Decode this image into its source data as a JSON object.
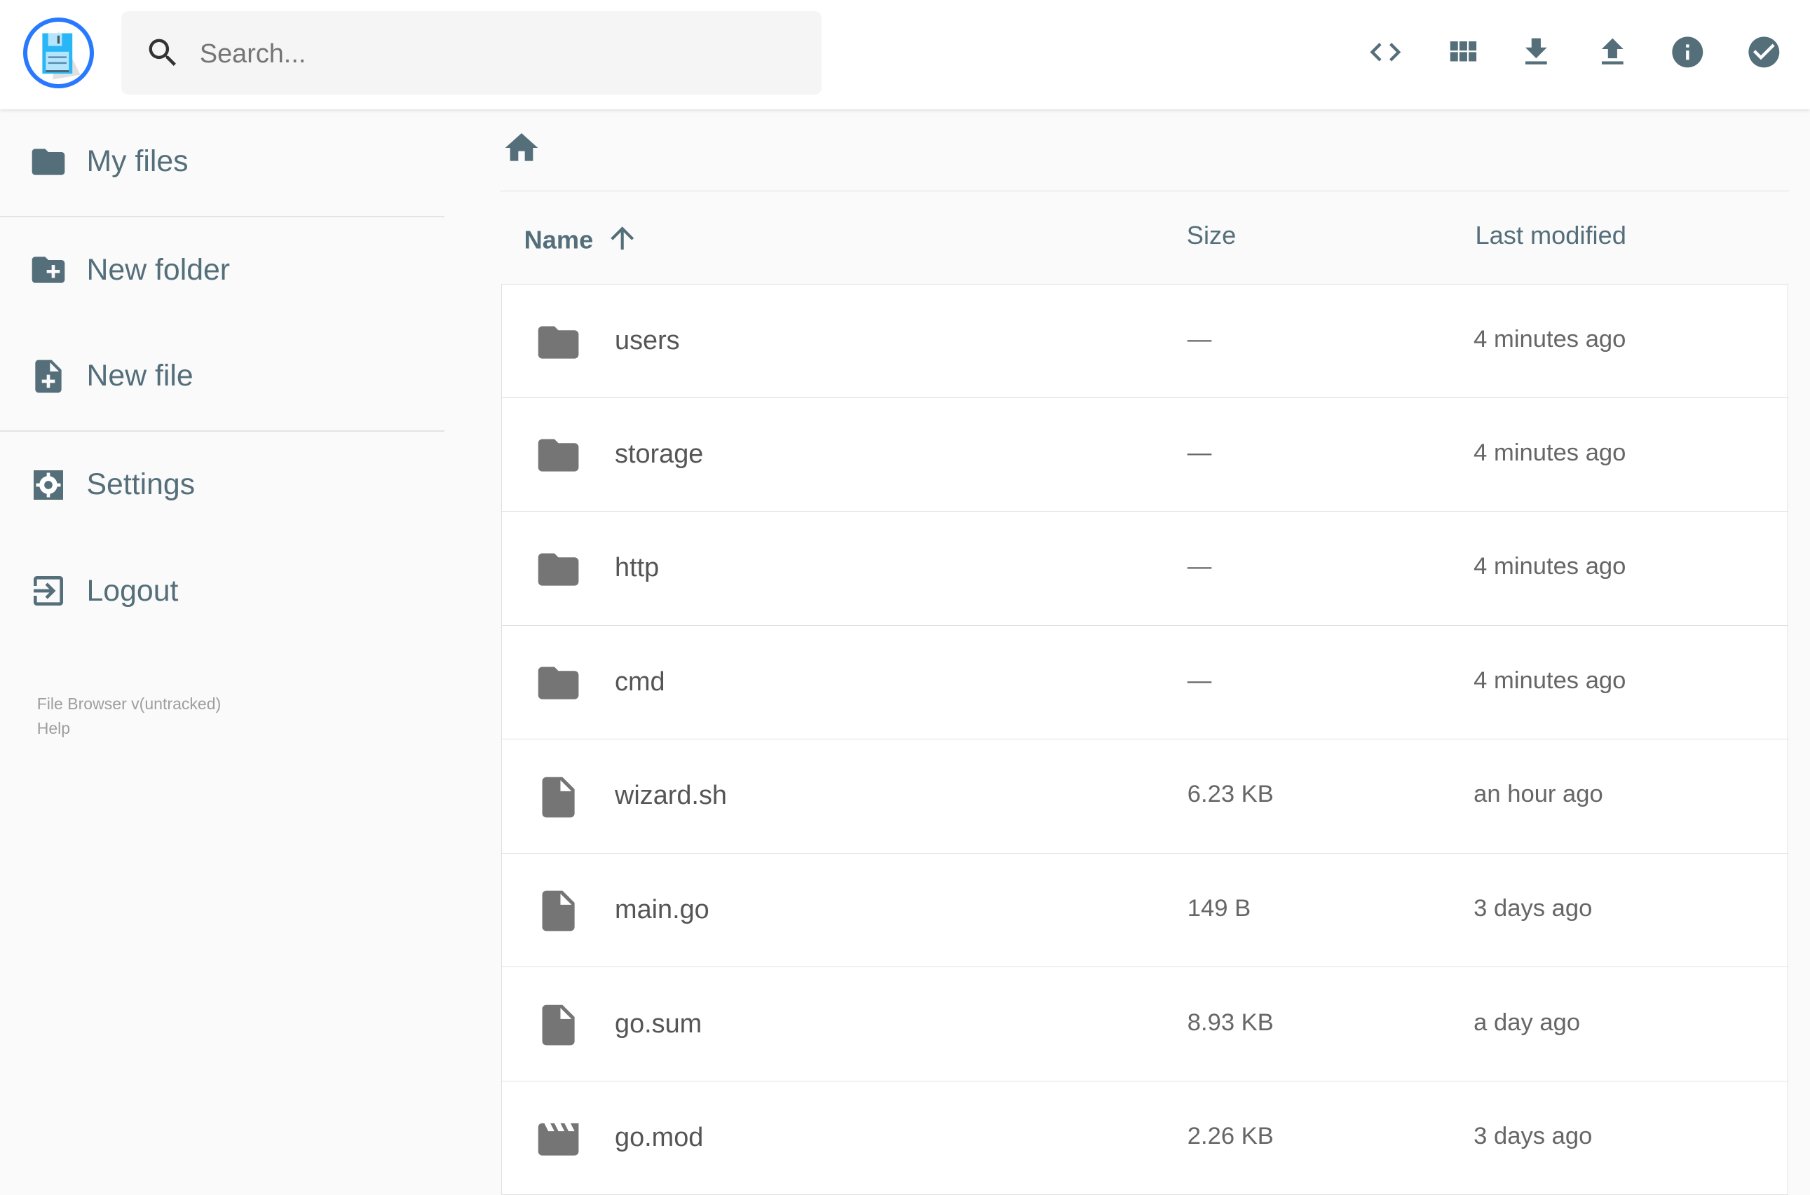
{
  "colors": {
    "accent": "#2979ff",
    "icon": "#546e7a",
    "file_icon": "#757575"
  },
  "header": {
    "search_placeholder": "Search...",
    "actions": [
      {
        "icon": "code-icon",
        "label": "Toggle view"
      },
      {
        "icon": "grid-view-icon"
      },
      {
        "icon": "download-icon"
      },
      {
        "icon": "upload-icon"
      },
      {
        "icon": "info-icon"
      },
      {
        "icon": "check-circle-icon"
      }
    ]
  },
  "sidebar": {
    "items": [
      {
        "label": "My files",
        "icon": "folder-icon"
      },
      {
        "label": "New folder",
        "icon": "create-new-folder-icon"
      },
      {
        "label": "New file",
        "icon": "note-add-icon"
      },
      {
        "label": "Settings",
        "icon": "settings-icon"
      },
      {
        "label": "Logout",
        "icon": "exit-icon"
      }
    ],
    "footer": {
      "version": "File Browser v(untracked)",
      "help": "Help"
    }
  },
  "list": {
    "columns": {
      "name": "Name",
      "size": "Size",
      "modified": "Last modified"
    },
    "sort": {
      "column": "Name",
      "direction": "ascending"
    },
    "rows": [
      {
        "name": "users",
        "size": "—",
        "modified": "4 minutes ago",
        "type": "folder"
      },
      {
        "name": "storage",
        "size": "—",
        "modified": "4 minutes ago",
        "type": "folder"
      },
      {
        "name": "http",
        "size": "—",
        "modified": "4 minutes ago",
        "type": "folder"
      },
      {
        "name": "cmd",
        "size": "—",
        "modified": "4 minutes ago",
        "type": "folder"
      },
      {
        "name": "wizard.sh",
        "size": "6.23 KB",
        "modified": "an hour ago",
        "type": "file"
      },
      {
        "name": "main.go",
        "size": "149 B",
        "modified": "3 days ago",
        "type": "file"
      },
      {
        "name": "go.sum",
        "size": "8.93 KB",
        "modified": "a day ago",
        "type": "file"
      },
      {
        "name": "go.mod",
        "size": "2.26 KB",
        "modified": "3 days ago",
        "type": "video"
      }
    ]
  }
}
